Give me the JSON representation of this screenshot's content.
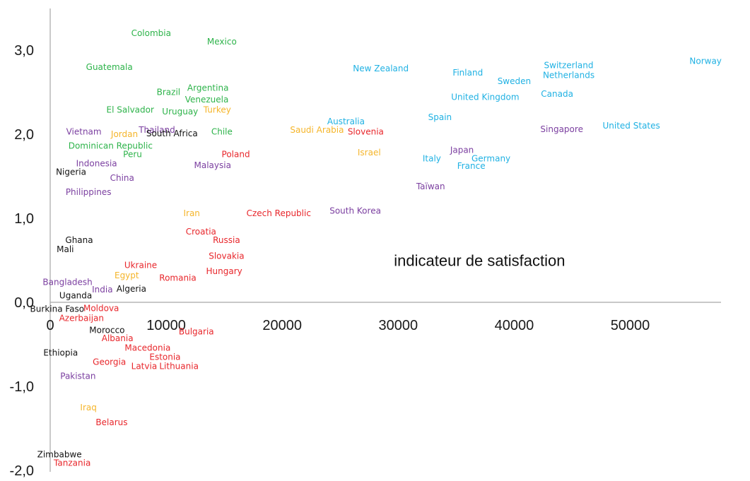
{
  "chart_data": {
    "type": "scatter",
    "title": "",
    "xlabel": "",
    "ylabel": "",
    "xlim": [
      0,
      57000
    ],
    "ylim": [
      -2.0,
      3.4
    ],
    "x_ticks": [
      {
        "v": 0,
        "label": "0"
      },
      {
        "v": 10000,
        "label": "10000"
      },
      {
        "v": 20000,
        "label": "20000"
      },
      {
        "v": 30000,
        "label": "30000"
      },
      {
        "v": 40000,
        "label": "40000"
      },
      {
        "v": 50000,
        "label": "50000"
      }
    ],
    "y_ticks": [
      {
        "v": 3.0,
        "label": "3,0"
      },
      {
        "v": 2.0,
        "label": "2,0"
      },
      {
        "v": 1.0,
        "label": "1,0"
      },
      {
        "v": 0.0,
        "label": "0,0"
      },
      {
        "v": -1.0,
        "label": "-1,0"
      },
      {
        "v": -2.0,
        "label": "-2,0"
      }
    ],
    "grid": false,
    "annotation": {
      "text": "indicateur de satisfaction",
      "x": 30000,
      "y": 0.5
    },
    "group_colors": {
      "latin_america": "#2db34a",
      "western": "#1fb1e3",
      "asia": "#7b3fa0",
      "middle_east": "#f5b52a",
      "eastern_europe": "#e8262b",
      "africa": "#111111"
    },
    "points": [
      {
        "name": "Colombia",
        "x": 8700,
        "y": 3.2,
        "group": "latin_america"
      },
      {
        "name": "Mexico",
        "x": 14800,
        "y": 3.1,
        "group": "latin_america"
      },
      {
        "name": "Guatemala",
        "x": 5100,
        "y": 2.8,
        "group": "latin_america"
      },
      {
        "name": "Brazil",
        "x": 10200,
        "y": 2.5,
        "group": "latin_america"
      },
      {
        "name": "Argentina",
        "x": 13600,
        "y": 2.55,
        "group": "latin_america"
      },
      {
        "name": "Venezuela",
        "x": 13500,
        "y": 2.41,
        "group": "latin_america"
      },
      {
        "name": "El Salvador",
        "x": 6900,
        "y": 2.29,
        "group": "latin_america"
      },
      {
        "name": "Uruguay",
        "x": 11200,
        "y": 2.27,
        "group": "latin_america"
      },
      {
        "name": "Chile",
        "x": 14800,
        "y": 2.03,
        "group": "latin_america"
      },
      {
        "name": "Dominican Republic",
        "x": 5200,
        "y": 1.86,
        "group": "latin_america"
      },
      {
        "name": "Peru",
        "x": 7100,
        "y": 1.76,
        "group": "latin_america"
      },
      {
        "name": "Norway",
        "x": 56500,
        "y": 2.87,
        "group": "western"
      },
      {
        "name": "Switzerland",
        "x": 44700,
        "y": 2.82,
        "group": "western"
      },
      {
        "name": "Netherlands",
        "x": 44700,
        "y": 2.7,
        "group": "western"
      },
      {
        "name": "New Zealand",
        "x": 28500,
        "y": 2.78,
        "group": "western"
      },
      {
        "name": "Finland",
        "x": 36000,
        "y": 2.73,
        "group": "western"
      },
      {
        "name": "Sweden",
        "x": 40000,
        "y": 2.63,
        "group": "western"
      },
      {
        "name": "United Kingdom",
        "x": 37500,
        "y": 2.44,
        "group": "western"
      },
      {
        "name": "Canada",
        "x": 43700,
        "y": 2.48,
        "group": "western"
      },
      {
        "name": "Spain",
        "x": 33600,
        "y": 2.2,
        "group": "western"
      },
      {
        "name": "Australia",
        "x": 25500,
        "y": 2.15,
        "group": "western"
      },
      {
        "name": "United States",
        "x": 50100,
        "y": 2.1,
        "group": "western"
      },
      {
        "name": "Italy",
        "x": 32900,
        "y": 1.71,
        "group": "western"
      },
      {
        "name": "Germany",
        "x": 38000,
        "y": 1.71,
        "group": "western"
      },
      {
        "name": "France",
        "x": 36300,
        "y": 1.62,
        "group": "western"
      },
      {
        "name": "Vietnam",
        "x": 2900,
        "y": 2.03,
        "group": "asia"
      },
      {
        "name": "Thailand",
        "x": 9200,
        "y": 2.05,
        "group": "asia"
      },
      {
        "name": "Singapore",
        "x": 44100,
        "y": 2.06,
        "group": "asia"
      },
      {
        "name": "Japan",
        "x": 35500,
        "y": 1.81,
        "group": "asia"
      },
      {
        "name": "Indonesia",
        "x": 4000,
        "y": 1.65,
        "group": "asia"
      },
      {
        "name": "Malaysia",
        "x": 14000,
        "y": 1.63,
        "group": "asia"
      },
      {
        "name": "China",
        "x": 6200,
        "y": 1.48,
        "group": "asia"
      },
      {
        "name": "Taïwan",
        "x": 32800,
        "y": 1.38,
        "group": "asia"
      },
      {
        "name": "Philippines",
        "x": 3300,
        "y": 1.31,
        "group": "asia"
      },
      {
        "name": "South Korea",
        "x": 26300,
        "y": 1.09,
        "group": "asia"
      },
      {
        "name": "Bangladesh",
        "x": 1500,
        "y": 0.24,
        "group": "asia"
      },
      {
        "name": "India",
        "x": 4500,
        "y": 0.15,
        "group": "asia"
      },
      {
        "name": "Pakistan",
        "x": 2400,
        "y": -0.88,
        "group": "asia"
      },
      {
        "name": "Turkey",
        "x": 14400,
        "y": 2.29,
        "group": "middle_east"
      },
      {
        "name": "Jordan",
        "x": 6400,
        "y": 2.0,
        "group": "middle_east"
      },
      {
        "name": "Saudi Arabia",
        "x": 23000,
        "y": 2.05,
        "group": "middle_east"
      },
      {
        "name": "Israel",
        "x": 27500,
        "y": 1.78,
        "group": "middle_east"
      },
      {
        "name": "Iran",
        "x": 12200,
        "y": 1.06,
        "group": "middle_east"
      },
      {
        "name": "Egypt",
        "x": 6600,
        "y": 0.32,
        "group": "middle_east"
      },
      {
        "name": "Iraq",
        "x": 3300,
        "y": -1.25,
        "group": "middle_east"
      },
      {
        "name": "Slovenia",
        "x": 27200,
        "y": 2.03,
        "group": "eastern_europe"
      },
      {
        "name": "Poland",
        "x": 16000,
        "y": 1.76,
        "group": "eastern_europe"
      },
      {
        "name": "Czech Republic",
        "x": 19700,
        "y": 1.06,
        "group": "eastern_europe"
      },
      {
        "name": "Croatia",
        "x": 13000,
        "y": 0.84,
        "group": "eastern_europe"
      },
      {
        "name": "Russia",
        "x": 15200,
        "y": 0.74,
        "group": "eastern_europe"
      },
      {
        "name": "Slovakia",
        "x": 15200,
        "y": 0.55,
        "group": "eastern_europe"
      },
      {
        "name": "Ukraine",
        "x": 7800,
        "y": 0.44,
        "group": "eastern_europe"
      },
      {
        "name": "Hungary",
        "x": 15000,
        "y": 0.37,
        "group": "eastern_europe"
      },
      {
        "name": "Romania",
        "x": 11000,
        "y": 0.29,
        "group": "eastern_europe"
      },
      {
        "name": "Moldova",
        "x": 4400,
        "y": -0.07,
        "group": "eastern_europe"
      },
      {
        "name": "Azerbaijan",
        "x": 2700,
        "y": -0.19,
        "group": "eastern_europe"
      },
      {
        "name": "Bulgaria",
        "x": 12600,
        "y": -0.35,
        "group": "eastern_europe"
      },
      {
        "name": "Albania",
        "x": 5800,
        "y": -0.43,
        "group": "eastern_europe"
      },
      {
        "name": "Macedonia",
        "x": 8400,
        "y": -0.54,
        "group": "eastern_europe"
      },
      {
        "name": "Estonia",
        "x": 9900,
        "y": -0.65,
        "group": "eastern_europe"
      },
      {
        "name": "Georgia",
        "x": 5100,
        "y": -0.71,
        "group": "eastern_europe"
      },
      {
        "name": "Latvia",
        "x": 8100,
        "y": -0.76,
        "group": "eastern_europe"
      },
      {
        "name": "Lithuania",
        "x": 11100,
        "y": -0.76,
        "group": "eastern_europe"
      },
      {
        "name": "Belarus",
        "x": 5300,
        "y": -1.43,
        "group": "eastern_europe"
      },
      {
        "name": "Tanzania",
        "x": 1900,
        "y": -1.91,
        "group": "eastern_europe"
      },
      {
        "name": "South Africa",
        "x": 10500,
        "y": 2.01,
        "group": "africa"
      },
      {
        "name": "Nigeria",
        "x": 1800,
        "y": 1.55,
        "group": "africa"
      },
      {
        "name": "Ghana",
        "x": 2500,
        "y": 0.74,
        "group": "africa"
      },
      {
        "name": "Mali",
        "x": 1300,
        "y": 0.63,
        "group": "africa"
      },
      {
        "name": "Algeria",
        "x": 7000,
        "y": 0.16,
        "group": "africa"
      },
      {
        "name": "Uganda",
        "x": 2200,
        "y": 0.08,
        "group": "africa"
      },
      {
        "name": "Burkina Faso",
        "x": 600,
        "y": -0.08,
        "group": "africa"
      },
      {
        "name": "Morocco",
        "x": 4900,
        "y": -0.33,
        "group": "africa"
      },
      {
        "name": "Ethiopia",
        "x": 900,
        "y": -0.6,
        "group": "africa"
      },
      {
        "name": "Zimbabwe",
        "x": 800,
        "y": -1.81,
        "group": "africa"
      }
    ]
  }
}
